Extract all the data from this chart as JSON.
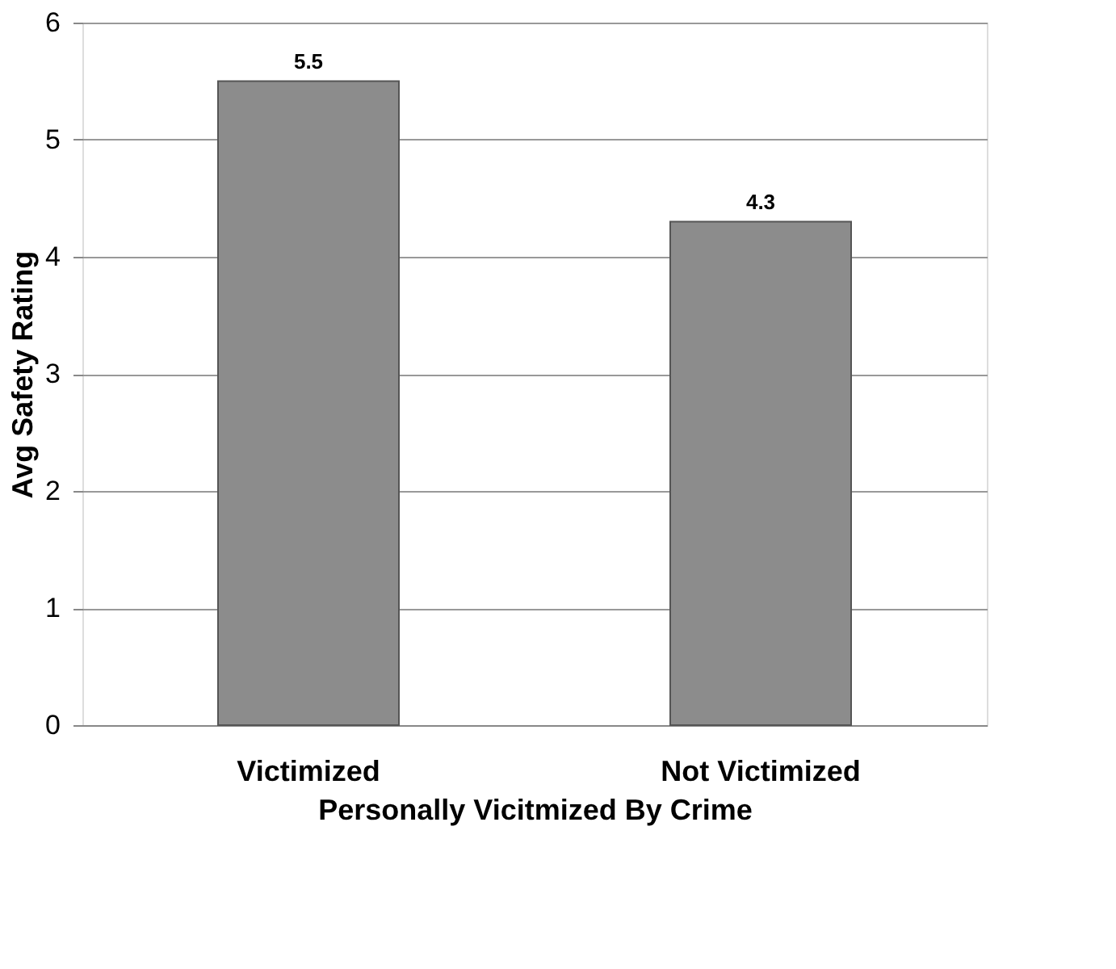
{
  "chart_data": {
    "type": "bar",
    "xlabel": "Personally Vicitmized By Crime",
    "ylabel": "Avg Safety Rating",
    "categories": [
      "Victimized",
      "Not Victimized"
    ],
    "values": [
      5.5,
      4.3
    ],
    "color": "#8c8c8c",
    "ylim": [
      0,
      6
    ],
    "yticks": [
      0,
      1,
      2,
      3,
      4,
      5,
      6
    ],
    "grid": "y",
    "data_labels": true
  }
}
